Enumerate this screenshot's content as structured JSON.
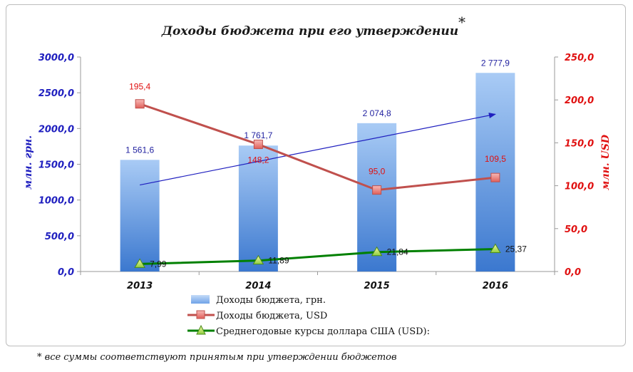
{
  "chart_data": {
    "type": "bar",
    "title": "Доходы бюджета при его утверждении",
    "title_mark": "*",
    "categories": [
      "2013",
      "2014",
      "2015",
      "2016"
    ],
    "left_axis": {
      "label": "млн. грн.",
      "ylim": [
        0,
        3000
      ],
      "ticks": [
        0,
        500,
        1000,
        1500,
        2000,
        2500,
        3000
      ],
      "tick_labels": [
        "0,0",
        "500,0",
        "1000,0",
        "1500,0",
        "2000,0",
        "2500,0",
        "3000,0"
      ]
    },
    "right_axis": {
      "label": "млн. USD",
      "ylim": [
        0,
        250
      ],
      "ticks": [
        0,
        50,
        100,
        150,
        200,
        250
      ],
      "tick_labels": [
        "0,0",
        "50,0",
        "100,0",
        "150,0",
        "200,0",
        "250,0"
      ]
    },
    "series": [
      {
        "name": "Доходы бюджета, грн.",
        "type": "bar",
        "axis": "left",
        "values": [
          1561.6,
          1761.7,
          2074.8,
          2777.9
        ],
        "labels": [
          "1 561,6",
          "1 761,7",
          "2 074,8",
          "2 777,9"
        ],
        "color": "#6fa3e8"
      },
      {
        "name": "Доходы бюджета, USD",
        "type": "line",
        "axis": "right",
        "values": [
          195.4,
          148.2,
          95.0,
          109.5
        ],
        "labels": [
          "195,4",
          "148,2",
          "95,0",
          "109,5"
        ],
        "color": "#c0504d"
      },
      {
        "name": "Среднегодовые курсы доллара США (USD):",
        "type": "line",
        "axis": "right",
        "values": [
          7.99,
          11.89,
          21.84,
          25.37
        ],
        "labels": [
          "7,99",
          "11,89",
          "21,84",
          "25,37"
        ],
        "color": "#008000"
      }
    ],
    "trend_arrow": {
      "axis": "left",
      "from": {
        "category": "2013",
        "value": 1210
      },
      "to": {
        "category": "2016",
        "value": 2200
      },
      "color": "#1f1fbf"
    },
    "grid": false,
    "legend_position": "bottom"
  },
  "footnote": "* все суммы соответствуют принятым при утверждении бюджетов"
}
